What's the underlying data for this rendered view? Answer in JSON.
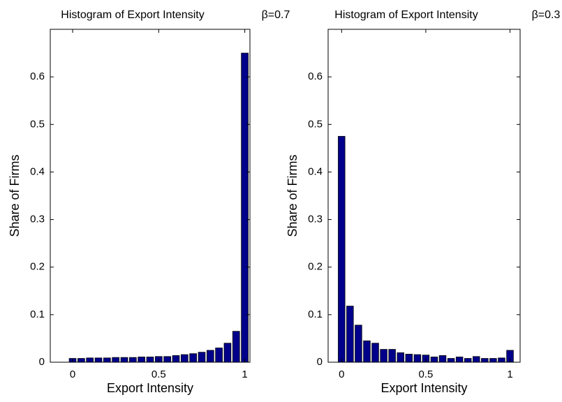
{
  "chart_data": [
    {
      "type": "histogram",
      "title": "Histogram of Export Intensity",
      "annotation": "β=0.7",
      "xlabel": "Export Intensity",
      "ylabel": "Share of Firms",
      "color": "#00008b",
      "bins": [
        -0.025,
        0.025,
        0.075,
        0.125,
        0.175,
        0.225,
        0.275,
        0.325,
        0.375,
        0.425,
        0.475,
        0.525,
        0.575,
        0.625,
        0.675,
        0.725,
        0.775,
        0.825,
        0.875,
        0.925,
        0.975,
        1.025
      ],
      "values": [
        0.008,
        0.008,
        0.009,
        0.009,
        0.009,
        0.01,
        0.01,
        0.01,
        0.011,
        0.011,
        0.012,
        0.012,
        0.014,
        0.016,
        0.018,
        0.021,
        0.025,
        0.03,
        0.04,
        0.065,
        0.65
      ],
      "xlim": [
        -0.13,
        1.03
      ],
      "ylim": [
        0,
        0.7
      ],
      "xticks": [
        0,
        0.5,
        1
      ],
      "yticks": [
        0,
        0.1,
        0.2,
        0.3,
        0.4,
        0.5,
        0.6
      ]
    },
    {
      "type": "histogram",
      "title": "Histogram of Export Intensity",
      "annotation": "β=0.3",
      "xlabel": "Export Intensity",
      "ylabel": "Share of Firms",
      "color": "#00008b",
      "bins": [
        -0.025,
        0.025,
        0.075,
        0.125,
        0.175,
        0.225,
        0.275,
        0.325,
        0.375,
        0.425,
        0.475,
        0.525,
        0.575,
        0.625,
        0.675,
        0.725,
        0.775,
        0.825,
        0.875,
        0.925,
        0.975,
        1.025
      ],
      "values": [
        0.475,
        0.118,
        0.078,
        0.045,
        0.04,
        0.027,
        0.027,
        0.02,
        0.017,
        0.016,
        0.015,
        0.011,
        0.014,
        0.008,
        0.011,
        0.008,
        0.012,
        0.008,
        0.008,
        0.009,
        0.025
      ],
      "xlim": [
        -0.08,
        1.06
      ],
      "ylim": [
        0,
        0.7
      ],
      "xticks": [
        0,
        0.5,
        1
      ],
      "yticks": [
        0,
        0.1,
        0.2,
        0.3,
        0.4,
        0.5,
        0.6
      ]
    }
  ]
}
